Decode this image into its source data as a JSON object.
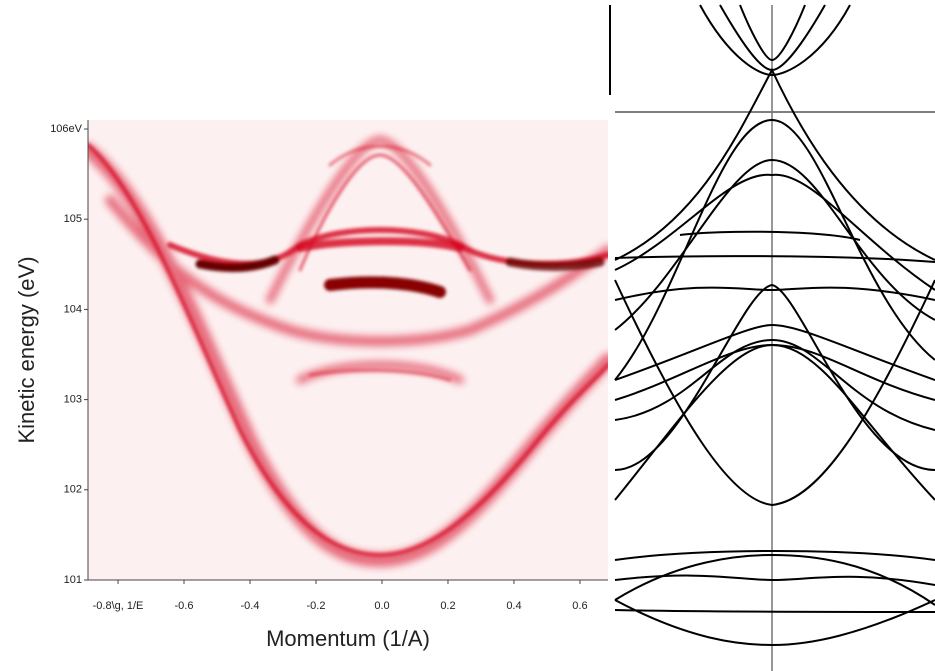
{
  "chart_data": {
    "type": "image",
    "ylabel": "Kinetic energy (eV)",
    "xlabel": "Momentum (1/A)",
    "xlim": [
      -0.891,
      0.685
    ],
    "ylim": [
      101,
      106.1
    ],
    "xticks": [
      {
        "value": -0.8,
        "label": "-0.8\\g, 1/E"
      },
      -0.6,
      -0.4,
      -0.2,
      {
        "value": 0,
        "label": "0.0"
      },
      0.2,
      0.4,
      0.6
    ],
    "yticks": [
      101,
      102,
      103,
      104,
      105,
      {
        "value": 106,
        "label": "106eV"
      }
    ]
  }
}
